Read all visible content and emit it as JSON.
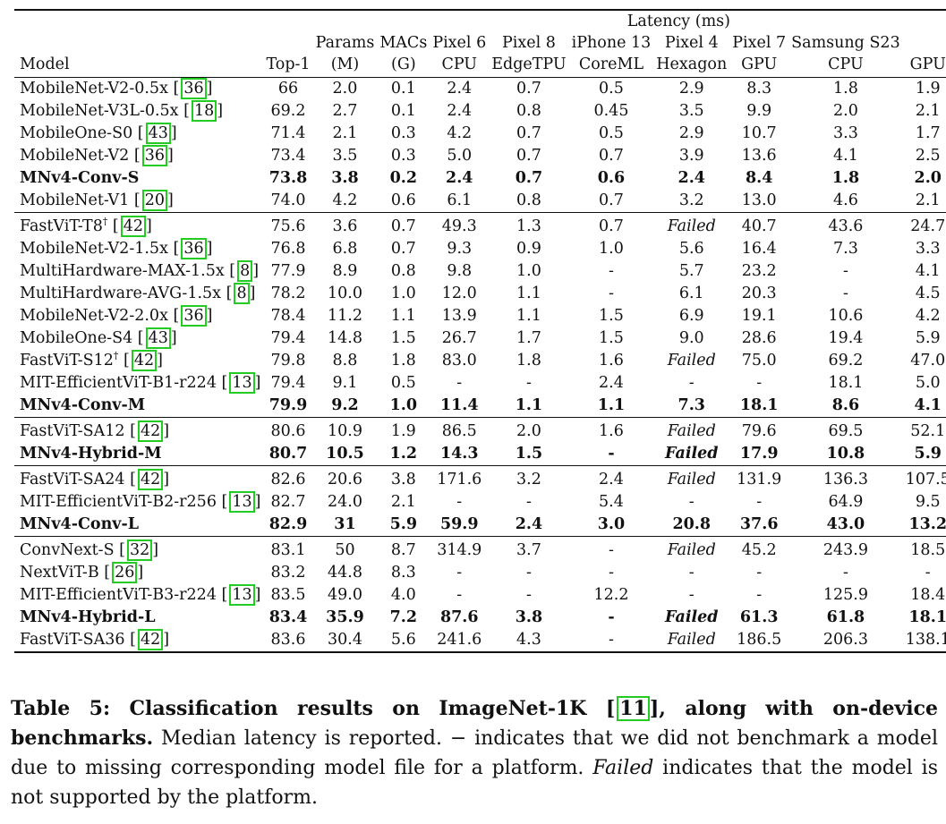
{
  "header": {
    "latency_group": "Latency (ms)",
    "columns": [
      {
        "line1": "",
        "line2": "",
        "line3": "Model"
      },
      {
        "line1": "",
        "line2": "",
        "line3": "Top-1"
      },
      {
        "line1": "",
        "line2": "Params",
        "line3": "(M)"
      },
      {
        "line1": "",
        "line2": "MACs",
        "line3": "(G)"
      },
      {
        "line1": "",
        "line2": "Pixel 6",
        "line3": "CPU"
      },
      {
        "line1": "",
        "line2": "Pixel 8",
        "line3": "EdgeTPU"
      },
      {
        "line1": "",
        "line2": "iPhone 13",
        "line3": "CoreML"
      },
      {
        "line1": "",
        "line2": "Pixel 4",
        "line3": "Hexagon"
      },
      {
        "line1": "",
        "line2": "Pixel 7",
        "line3": "GPU"
      },
      {
        "line1": "",
        "line2": "Samsung S23",
        "line3": "CPU"
      },
      {
        "line1": "",
        "line2": "",
        "line3": "GPU"
      }
    ]
  },
  "rows": [
    {
      "group_start": false,
      "bold": false,
      "model": "MobileNet-V2-0.5x",
      "cite": "36",
      "sup": "",
      "cells": [
        "66",
        "2.0",
        "0.1",
        "2.4",
        "0.7",
        "0.5",
        "2.9",
        "8.3",
        "1.8",
        "1.9"
      ]
    },
    {
      "group_start": false,
      "bold": false,
      "model": "MobileNet-V3L-0.5x",
      "cite": "18",
      "sup": "",
      "cells": [
        "69.2",
        "2.7",
        "0.1",
        "2.4",
        "0.8",
        "0.45",
        "3.5",
        "9.9",
        "2.0",
        "2.1"
      ]
    },
    {
      "group_start": false,
      "bold": false,
      "model": "MobileOne-S0",
      "cite": "43",
      "sup": "",
      "cells": [
        "71.4",
        "2.1",
        "0.3",
        "4.2",
        "0.7",
        "0.5",
        "2.9",
        "10.7",
        "3.3",
        "1.7"
      ]
    },
    {
      "group_start": false,
      "bold": false,
      "model": "MobileNet-V2",
      "cite": "36",
      "sup": "",
      "cells": [
        "73.4",
        "3.5",
        "0.3",
        "5.0",
        "0.7",
        "0.7",
        "3.9",
        "13.6",
        "4.1",
        "2.5"
      ]
    },
    {
      "group_start": false,
      "bold": true,
      "model": "MNv4-Conv-S",
      "cite": "",
      "sup": "",
      "cells": [
        "73.8",
        "3.8",
        "0.2",
        "2.4",
        "0.7",
        "0.6",
        "2.4",
        "8.4",
        "1.8",
        "2.0"
      ]
    },
    {
      "group_start": false,
      "bold": false,
      "model": "MobileNet-V1",
      "cite": "20",
      "sup": "",
      "cells": [
        "74.0",
        "4.2",
        "0.6",
        "6.1",
        "0.8",
        "0.7",
        "3.2",
        "13.0",
        "4.6",
        "2.1"
      ]
    },
    {
      "group_start": true,
      "bold": false,
      "model": "FastViT-T8",
      "cite": "42",
      "sup": "†",
      "cells": [
        "75.6",
        "3.6",
        "0.7",
        "49.3",
        "1.3",
        "0.7",
        "Failed",
        "40.7",
        "43.6",
        "24.7"
      ]
    },
    {
      "group_start": false,
      "bold": false,
      "model": "MobileNet-V2-1.5x",
      "cite": "36",
      "sup": "",
      "cells": [
        "76.8",
        "6.8",
        "0.7",
        "9.3",
        "0.9",
        "1.0",
        "5.6",
        "16.4",
        "7.3",
        "3.3"
      ]
    },
    {
      "group_start": false,
      "bold": false,
      "model": "MultiHardware-MAX-1.5x",
      "cite": "8",
      "sup": "",
      "cells": [
        "77.9",
        "8.9",
        "0.8",
        "9.8",
        "1.0",
        "-",
        "5.7",
        "23.2",
        "-",
        "4.1"
      ]
    },
    {
      "group_start": false,
      "bold": false,
      "model": "MultiHardware-AVG-1.5x",
      "cite": "8",
      "sup": "",
      "cells": [
        "78.2",
        "10.0",
        "1.0",
        "12.0",
        "1.1",
        "-",
        "6.1",
        "20.3",
        "-",
        "4.5"
      ]
    },
    {
      "group_start": false,
      "bold": false,
      "model": "MobileNet-V2-2.0x",
      "cite": "36",
      "sup": "",
      "cells": [
        "78.4",
        "11.2",
        "1.1",
        "13.9",
        "1.1",
        "1.5",
        "6.9",
        "19.1",
        "10.6",
        "4.2"
      ]
    },
    {
      "group_start": false,
      "bold": false,
      "model": "MobileOne-S4",
      "cite": "43",
      "sup": "",
      "cells": [
        "79.4",
        "14.8",
        "1.5",
        "26.7",
        "1.7",
        "1.5",
        "9.0",
        "28.6",
        "19.4",
        "5.9"
      ]
    },
    {
      "group_start": false,
      "bold": false,
      "model": "FastViT-S12",
      "cite": "42",
      "sup": "†",
      "cells": [
        "79.8",
        "8.8",
        "1.8",
        "83.0",
        "1.8",
        "1.6",
        "Failed",
        "75.0",
        "69.2",
        "47.0"
      ]
    },
    {
      "group_start": false,
      "bold": false,
      "model": "MIT-EfficientViT-B1-r224",
      "cite": "13",
      "sup": "",
      "cells": [
        "79.4",
        "9.1",
        "0.5",
        "-",
        "-",
        "2.4",
        "-",
        "-",
        "18.1",
        "5.0"
      ]
    },
    {
      "group_start": false,
      "bold": true,
      "model": "MNv4-Conv-M",
      "cite": "",
      "sup": "",
      "cells": [
        "79.9",
        "9.2",
        "1.0",
        "11.4",
        "1.1",
        "1.1",
        "7.3",
        "18.1",
        "8.6",
        "4.1"
      ]
    },
    {
      "group_start": true,
      "bold": false,
      "model": "FastViT-SA12",
      "cite": "42",
      "sup": "",
      "cells": [
        "80.6",
        "10.9",
        "1.9",
        "86.5",
        "2.0",
        "1.6",
        "Failed",
        "79.6",
        "69.5",
        "52.1"
      ]
    },
    {
      "group_start": false,
      "bold": true,
      "model": "MNv4-Hybrid-M",
      "cite": "",
      "sup": "",
      "cells": [
        "80.7",
        "10.5",
        "1.2",
        "14.3",
        "1.5",
        "-",
        "Failed",
        "17.9",
        "10.8",
        "5.9"
      ]
    },
    {
      "group_start": true,
      "bold": false,
      "model": "FastViT-SA24",
      "cite": "42",
      "sup": "",
      "cells": [
        "82.6",
        "20.6",
        "3.8",
        "171.6",
        "3.2",
        "2.4",
        "Failed",
        "131.9",
        "136.3",
        "107.5"
      ]
    },
    {
      "group_start": false,
      "bold": false,
      "model": "MIT-EfficientViT-B2-r256",
      "cite": "13",
      "sup": "",
      "cells": [
        "82.7",
        "24.0",
        "2.1",
        "-",
        "-",
        "5.4",
        "-",
        "-",
        "64.9",
        "9.5"
      ]
    },
    {
      "group_start": false,
      "bold": true,
      "model": "MNv4-Conv-L",
      "cite": "",
      "sup": "",
      "cells": [
        "82.9",
        "31",
        "5.9",
        "59.9",
        "2.4",
        "3.0",
        "20.8",
        "37.6",
        "43.0",
        "13.2"
      ]
    },
    {
      "group_start": true,
      "bold": false,
      "model": "ConvNext-S",
      "cite": "32",
      "sup": "",
      "cells": [
        "83.1",
        "50",
        "8.7",
        "314.9",
        "3.7",
        "-",
        "Failed",
        "45.2",
        "243.9",
        "18.5"
      ]
    },
    {
      "group_start": false,
      "bold": false,
      "model": "NextViT-B",
      "cite": "26",
      "sup": "",
      "cells": [
        "83.2",
        "44.8",
        "8.3",
        "-",
        "-",
        "-",
        "-",
        "-",
        "-",
        "-"
      ]
    },
    {
      "group_start": false,
      "bold": false,
      "model": "MIT-EfficientViT-B3-r224",
      "cite": "13",
      "sup": "",
      "cells": [
        "83.5",
        "49.0",
        "4.0",
        "-",
        "-",
        "12.2",
        "-",
        "-",
        "125.9",
        "18.4"
      ]
    },
    {
      "group_start": false,
      "bold": true,
      "model": "MNv4-Hybrid-L",
      "cite": "",
      "sup": "",
      "cells": [
        "83.4",
        "35.9",
        "7.2",
        "87.6",
        "3.8",
        "-",
        "Failed",
        "61.3",
        "61.8",
        "18.1"
      ]
    },
    {
      "group_start": false,
      "bold": false,
      "model": "FastViT-SA36",
      "cite": "42",
      "sup": "",
      "cells": [
        "83.6",
        "30.4",
        "5.6",
        "241.6",
        "4.3",
        "-",
        "Failed",
        "186.5",
        "206.3",
        "138.1"
      ]
    }
  ],
  "caption": {
    "bold_a": "Table 5: Classification results on ImageNet-1K ",
    "cite": "11",
    "bold_b": ", along with on-device benchmarks.",
    "text_a": " Median latency is reported. − indicates that we did not benchmark a model due to missing corresponding model file for a platform. ",
    "italic": "Failed",
    "text_b": " indicates that the model is not supported by the platform."
  },
  "colors": {
    "cite_box": "#22cc22",
    "text": "#111111"
  }
}
